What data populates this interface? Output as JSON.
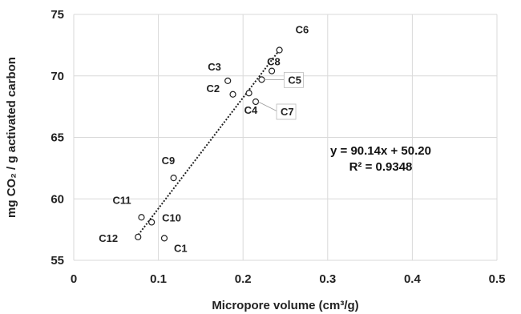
{
  "chart_data": {
    "type": "scatter",
    "xlabel": "Micropore volume (cm³/g)",
    "ylabel": "mg CO₂ / g activated carbon",
    "xlim": [
      0,
      0.5
    ],
    "ylim": [
      55,
      75
    ],
    "xticks": [
      "0",
      "0.1",
      "0.2",
      "0.3",
      "0.4",
      "0.5"
    ],
    "yticks": [
      "55",
      "60",
      "65",
      "70",
      "75"
    ],
    "grid": true,
    "points": [
      {
        "label": "C1",
        "x": 0.107,
        "y": 56.8
      },
      {
        "label": "C2",
        "x": 0.188,
        "y": 68.5
      },
      {
        "label": "C3",
        "x": 0.182,
        "y": 69.6
      },
      {
        "label": "C4",
        "x": 0.207,
        "y": 68.6
      },
      {
        "label": "C5",
        "x": 0.222,
        "y": 69.7
      },
      {
        "label": "C6",
        "x": 0.243,
        "y": 72.1
      },
      {
        "label": "C7",
        "x": 0.215,
        "y": 67.9
      },
      {
        "label": "C8",
        "x": 0.234,
        "y": 70.4
      },
      {
        "label": "C9",
        "x": 0.118,
        "y": 61.7
      },
      {
        "label": "C10",
        "x": 0.092,
        "y": 58.1
      },
      {
        "label": "C11",
        "x": 0.08,
        "y": 58.5
      },
      {
        "label": "C12",
        "x": 0.076,
        "y": 56.9
      }
    ],
    "trendline": {
      "slope": 90.14,
      "intercept": 50.2,
      "x_range": [
        0.074,
        0.245
      ],
      "equation": "y = 90.14x + 50.20",
      "r_squared": "R² = 0.9348"
    }
  }
}
